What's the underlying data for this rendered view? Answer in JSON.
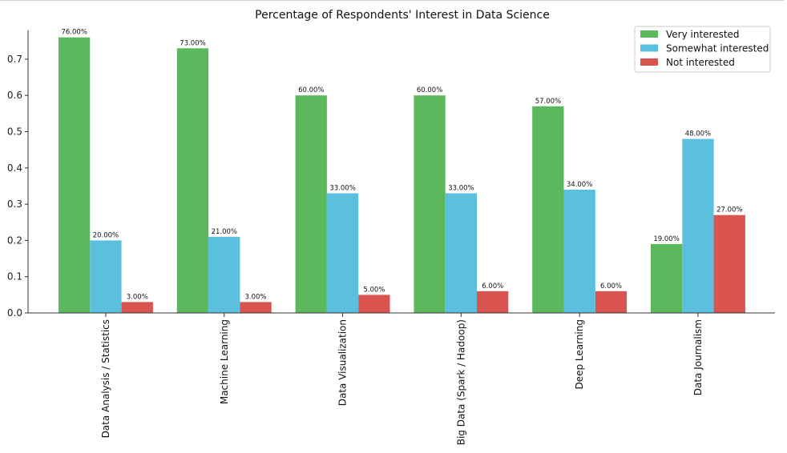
{
  "chart_data": {
    "type": "bar",
    "title": "Percentage of Respondents' Interest in Data Science",
    "xlabel": "",
    "ylabel": "",
    "categories": [
      "Data Analysis / Statistics",
      "Machine Learning",
      "Data Visualization",
      "Big Data (Spark / Hadoop)",
      "Deep Learning",
      "Data Journalism"
    ],
    "series": [
      {
        "name": "Very interested",
        "color": "#5cb85c",
        "values": [
          0.76,
          0.73,
          0.6,
          0.6,
          0.57,
          0.19
        ],
        "labels": [
          "76.00%",
          "73.00%",
          "60.00%",
          "60.00%",
          "57.00%",
          "19.00%"
        ]
      },
      {
        "name": "Somewhat interested",
        "color": "#5bc0de",
        "values": [
          0.2,
          0.21,
          0.33,
          0.33,
          0.34,
          0.48
        ],
        "labels": [
          "20.00%",
          "21.00%",
          "33.00%",
          "33.00%",
          "34.00%",
          "48.00%"
        ]
      },
      {
        "name": "Not interested",
        "color": "#d9534f",
        "values": [
          0.03,
          0.03,
          0.05,
          0.06,
          0.06,
          0.27
        ],
        "labels": [
          "3.00%",
          "3.00%",
          "5.00%",
          "6.00%",
          "6.00%",
          "27.00%"
        ]
      }
    ],
    "yticks": [
      "0.0",
      "0.1",
      "0.2",
      "0.3",
      "0.4",
      "0.5",
      "0.6",
      "0.7"
    ],
    "ylim": [
      0,
      0.78
    ],
    "grid": false,
    "legend_position": "top-right"
  }
}
